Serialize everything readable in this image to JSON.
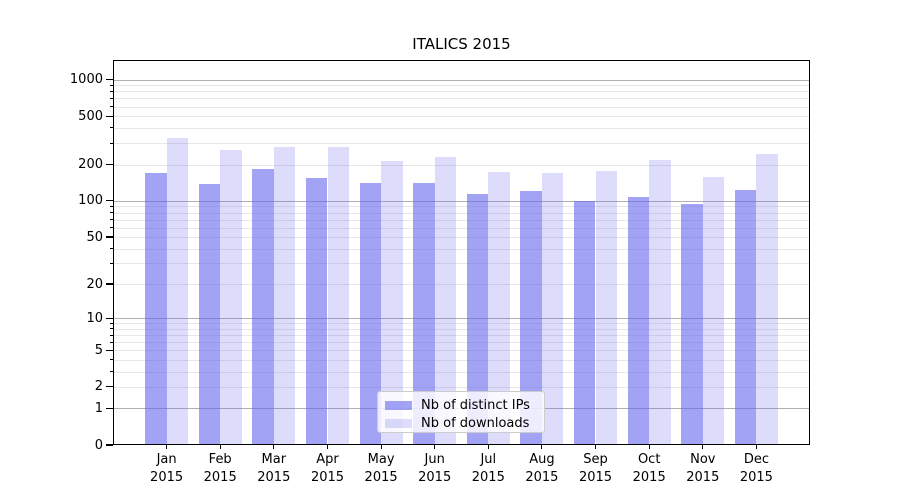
{
  "chart_data": {
    "type": "bar",
    "title": "ITALICS 2015",
    "year": "2015",
    "categories": [
      "Jan",
      "Feb",
      "Mar",
      "Apr",
      "May",
      "Jun",
      "Jul",
      "Aug",
      "Sep",
      "Oct",
      "Nov",
      "Dec"
    ],
    "series": [
      {
        "name": "Nb of distinct IPs",
        "color": "rgba(102,102,238,0.60)",
        "values": [
          170,
          137,
          182,
          156,
          142,
          140,
          114,
          121,
          99,
          108,
          95,
          122
        ]
      },
      {
        "name": "Nb of downloads",
        "color": "rgba(102,102,238,0.22)",
        "values": [
          331,
          262,
          278,
          277,
          213,
          232,
          175,
          171,
          176,
          219,
          158,
          243
        ]
      }
    ],
    "y_ticks": [
      0,
      1,
      2,
      5,
      10,
      20,
      50,
      100,
      200,
      500,
      1000
    ],
    "scale": "log10(1+x)",
    "ylim": [
      0,
      1450
    ],
    "grid": {
      "orientation": "horizontal",
      "major_color": "#b0b0b0",
      "minor_color": "#e7e7e7"
    },
    "legend_position": "lower center",
    "axis_color": "#000000",
    "background": "#ffffff"
  }
}
